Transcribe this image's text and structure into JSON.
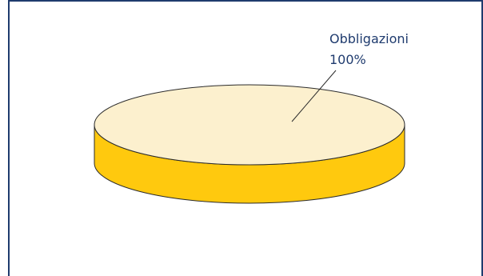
{
  "chart_data": {
    "type": "pie",
    "style": "3d",
    "title": "",
    "slices": [
      {
        "label": "Obbligazioni",
        "value": 100,
        "display": "100%",
        "top_color": "#FCF0CE",
        "side_color": "#FFC90E"
      }
    ],
    "legend": "none"
  },
  "colors": {
    "frame": "#1f3b6e",
    "label_text": "#1f3b6e",
    "outline": "#2b2b2b"
  }
}
